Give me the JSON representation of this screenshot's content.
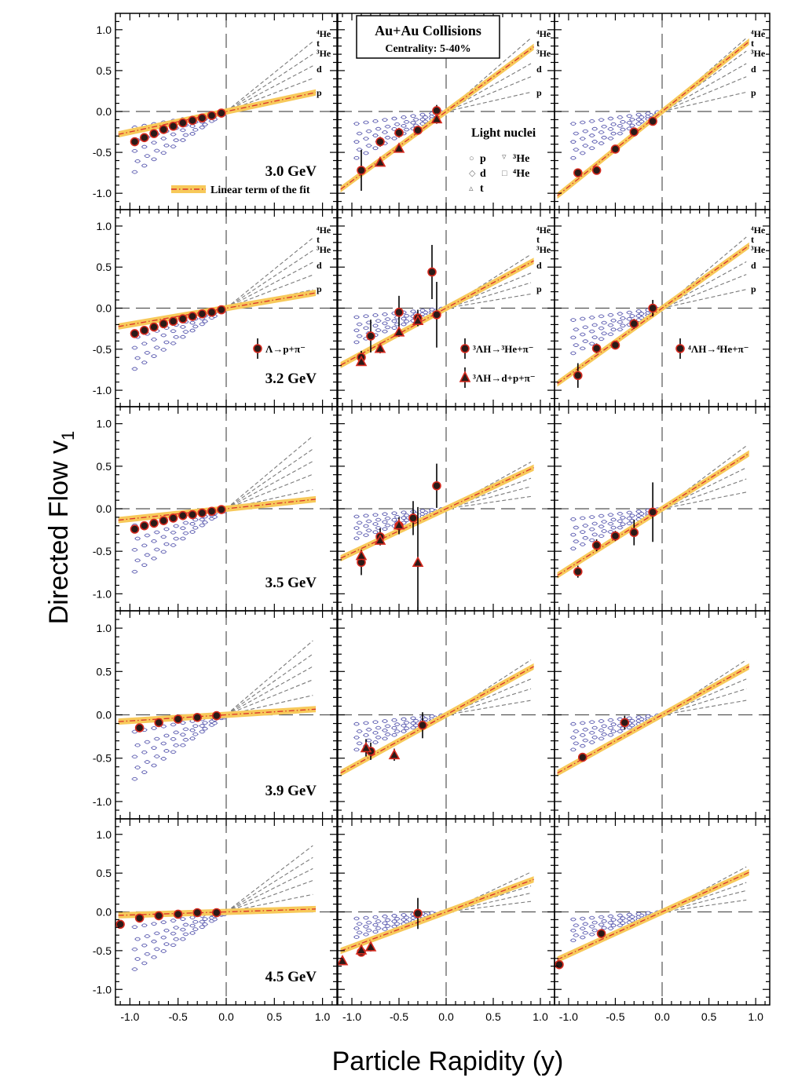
{
  "figure": {
    "title": "Au+Au Collisions",
    "subtitle": "Centrality: 5-40%",
    "xlabel": "Particle Rapidity (y)",
    "ylabel": "Directed Flow v",
    "ylabel_sub": "1",
    "fit_legend": "Linear term of the fit",
    "light_nuclei": {
      "title": "Light nuclei",
      "items": [
        {
          "symbol": "○",
          "label": "p"
        },
        {
          "symbol": "▿",
          "label": "³He"
        },
        {
          "symbol": "◇",
          "label": "d"
        },
        {
          "symbol": "□",
          "label": "⁴He"
        },
        {
          "symbol": "▵",
          "label": "t"
        }
      ]
    },
    "nuclei_labels": [
      "⁴He",
      "t",
      "³He",
      "d",
      "p"
    ],
    "decay_legends": [
      "Λ→p+π⁻",
      "³ΛH→³He+π⁻",
      "³ΛH→d+p+π⁻",
      "⁴ΛH→⁴He+π⁻"
    ],
    "colors": {
      "fit_band": "#f7c95a",
      "fit_line": "#d9312b",
      "marker_fill": "#2b1a17",
      "marker_edge": "#d62a1f",
      "nuclei_marker": "#5c5cb0",
      "guide": "#555555"
    }
  },
  "chart_data": {
    "type": "scatter",
    "xlim": [
      -1.15,
      1.15
    ],
    "ylim": [
      -1.2,
      1.2
    ],
    "x_ticks": [
      -1.0,
      -0.5,
      0.0,
      0.5,
      1.0
    ],
    "x_tick_labels": [
      "-1.0",
      "-0.5",
      "0.0",
      "0.5",
      "1.0"
    ],
    "y_ticks": [
      -1.0,
      -0.5,
      0.0,
      0.5,
      1.0
    ],
    "y_tick_labels": [
      "-1.0",
      "-0.5",
      "0.0",
      "0.5",
      "1.0"
    ],
    "light_nuclei_slopes": [
      0.95,
      0.78,
      0.62,
      0.45,
      0.25
    ],
    "rows": [
      {
        "energy": "3.0 GeV",
        "panels": [
          {
            "fit_slope": 0.25,
            "points": [
              {
                "x": -0.95,
                "y": -0.37
              },
              {
                "x": -0.85,
                "y": -0.32
              },
              {
                "x": -0.75,
                "y": -0.27
              },
              {
                "x": -0.65,
                "y": -0.22
              },
              {
                "x": -0.55,
                "y": -0.18
              },
              {
                "x": -0.45,
                "y": -0.14
              },
              {
                "x": -0.35,
                "y": -0.11
              },
              {
                "x": -0.25,
                "y": -0.08
              },
              {
                "x": -0.15,
                "y": -0.05
              },
              {
                "x": -0.05,
                "y": -0.02
              }
            ],
            "err": 0.02
          },
          {
            "fit_slope": 0.85,
            "points": [
              {
                "x": -0.9,
                "y": -0.72,
                "e": 0.25
              },
              {
                "x": -0.7,
                "y": -0.37,
                "e": 0.06
              },
              {
                "x": -0.5,
                "y": -0.26,
                "e": 0.06
              },
              {
                "x": -0.3,
                "y": -0.23,
                "e": 0.05
              },
              {
                "x": -0.1,
                "y": 0.01,
                "e": 0.07
              }
            ],
            "tri": [
              {
                "x": -0.7,
                "y": -0.62,
                "e": 0.04
              },
              {
                "x": -0.5,
                "y": -0.45,
                "e": 0.05
              },
              {
                "x": -0.1,
                "y": -0.09,
                "e": 0.06
              }
            ]
          },
          {
            "fit_slope": 0.92,
            "points": [
              {
                "x": -0.9,
                "y": -0.75,
                "e": 0.05
              },
              {
                "x": -0.7,
                "y": -0.72,
                "e": 0.04
              },
              {
                "x": -0.5,
                "y": -0.46,
                "e": 0.03
              },
              {
                "x": -0.3,
                "y": -0.25,
                "e": 0.03
              },
              {
                "x": -0.1,
                "y": -0.12,
                "e": 0.03
              }
            ]
          }
        ]
      },
      {
        "energy": "3.2 GeV",
        "panels": [
          {
            "fit_slope": 0.2,
            "points": [
              {
                "x": -0.95,
                "y": -0.31
              },
              {
                "x": -0.85,
                "y": -0.27
              },
              {
                "x": -0.75,
                "y": -0.23
              },
              {
                "x": -0.65,
                "y": -0.19
              },
              {
                "x": -0.55,
                "y": -0.16
              },
              {
                "x": -0.45,
                "y": -0.13
              },
              {
                "x": -0.35,
                "y": -0.1
              },
              {
                "x": -0.25,
                "y": -0.07
              },
              {
                "x": -0.15,
                "y": -0.05
              },
              {
                "x": -0.05,
                "y": -0.02
              }
            ],
            "err": 0.02
          },
          {
            "fit_slope": 0.62,
            "points": [
              {
                "x": -0.9,
                "y": -0.6,
                "e": 0.08
              },
              {
                "x": -0.8,
                "y": -0.34,
                "e": 0.2
              },
              {
                "x": -0.5,
                "y": -0.05,
                "e": 0.2
              },
              {
                "x": -0.3,
                "y": -0.12,
                "e": 0.1
              },
              {
                "x": -0.15,
                "y": 0.44,
                "e": 0.33
              },
              {
                "x": -0.1,
                "y": -0.08,
                "e": 0.4
              }
            ],
            "tri": [
              {
                "x": -0.9,
                "y": -0.65,
                "e": 0.05
              },
              {
                "x": -0.7,
                "y": -0.49,
                "e": 0.06
              },
              {
                "x": -0.5,
                "y": -0.29,
                "e": 0.06
              },
              {
                "x": -0.3,
                "y": -0.15,
                "e": 0.05
              }
            ]
          },
          {
            "fit_slope": 0.82,
            "points": [
              {
                "x": -0.9,
                "y": -0.82,
                "e": 0.15
              },
              {
                "x": -0.7,
                "y": -0.49,
                "e": 0.06
              },
              {
                "x": -0.5,
                "y": -0.45,
                "e": 0.05
              },
              {
                "x": -0.3,
                "y": -0.19,
                "e": 0.06
              },
              {
                "x": -0.1,
                "y": 0.0,
                "e": 0.1
              }
            ]
          }
        ]
      },
      {
        "energy": "3.5 GeV",
        "panels": [
          {
            "fit_slope": 0.12,
            "points": [
              {
                "x": -0.95,
                "y": -0.24
              },
              {
                "x": -0.85,
                "y": -0.2
              },
              {
                "x": -0.75,
                "y": -0.17
              },
              {
                "x": -0.65,
                "y": -0.14
              },
              {
                "x": -0.55,
                "y": -0.11
              },
              {
                "x": -0.45,
                "y": -0.08
              },
              {
                "x": -0.35,
                "y": -0.07
              },
              {
                "x": -0.25,
                "y": -0.05
              },
              {
                "x": -0.15,
                "y": -0.03
              },
              {
                "x": -0.05,
                "y": -0.01
              }
            ],
            "err": 0.02
          },
          {
            "fit_slope": 0.52,
            "points": [
              {
                "x": -0.9,
                "y": -0.63,
                "e": 0.15
              },
              {
                "x": -0.7,
                "y": -0.33,
                "e": 0.1
              },
              {
                "x": -0.5,
                "y": -0.2,
                "e": 0.1
              },
              {
                "x": -0.35,
                "y": -0.11,
                "e": 0.2
              },
              {
                "x": -0.1,
                "y": 0.27,
                "e": 0.26
              }
            ],
            "tri": [
              {
                "x": -0.9,
                "y": -0.55,
                "e": 0.06
              },
              {
                "x": -0.7,
                "y": -0.37,
                "e": 0.06
              },
              {
                "x": -0.5,
                "y": -0.19,
                "e": 0.06
              },
              {
                "x": -0.3,
                "y": -0.63,
                "e": 0.65
              }
            ]
          },
          {
            "fit_slope": 0.7,
            "points": [
              {
                "x": -0.9,
                "y": -0.74,
                "e": 0.07
              },
              {
                "x": -0.7,
                "y": -0.43,
                "e": 0.07
              },
              {
                "x": -0.5,
                "y": -0.32,
                "e": 0.06
              },
              {
                "x": -0.3,
                "y": -0.28,
                "e": 0.15
              },
              {
                "x": -0.1,
                "y": -0.04,
                "e": 0.35
              }
            ]
          }
        ]
      },
      {
        "energy": "3.9 GeV",
        "panels": [
          {
            "fit_slope": 0.07,
            "points": [
              {
                "x": -0.9,
                "y": -0.15
              },
              {
                "x": -0.7,
                "y": -0.09
              },
              {
                "x": -0.5,
                "y": -0.05
              },
              {
                "x": -0.3,
                "y": -0.03
              },
              {
                "x": -0.1,
                "y": -0.01
              }
            ],
            "err": 0.02
          },
          {
            "fit_slope": 0.6,
            "points": [
              {
                "x": -0.8,
                "y": -0.42,
                "e": 0.1
              },
              {
                "x": -0.25,
                "y": -0.12,
                "e": 0.15
              }
            ],
            "tri": [
              {
                "x": -0.85,
                "y": -0.38,
                "e": 0.1
              },
              {
                "x": -0.55,
                "y": -0.46,
                "e": 0.07
              }
            ]
          },
          {
            "fit_slope": 0.6,
            "points": [
              {
                "x": -0.85,
                "y": -0.49,
                "e": 0.05
              },
              {
                "x": -0.4,
                "y": -0.09,
                "e": 0.08
              }
            ]
          }
        ]
      },
      {
        "energy": "4.5 GeV",
        "panels": [
          {
            "fit_slope": 0.04,
            "points": [
              {
                "x": -1.1,
                "y": -0.16
              },
              {
                "x": -0.9,
                "y": -0.08
              },
              {
                "x": -0.7,
                "y": -0.05
              },
              {
                "x": -0.5,
                "y": -0.03
              },
              {
                "x": -0.3,
                "y": -0.01
              },
              {
                "x": -0.1,
                "y": -0.01
              }
            ],
            "err": 0.02
          },
          {
            "fit_slope": 0.45,
            "points": [
              {
                "x": -0.9,
                "y": -0.52,
                "e": 0.05
              },
              {
                "x": -0.3,
                "y": -0.02,
                "e": 0.2
              }
            ],
            "tri": [
              {
                "x": -1.1,
                "y": -0.63,
                "e": 0.05
              },
              {
                "x": -0.9,
                "y": -0.49,
                "e": 0.06
              },
              {
                "x": -0.8,
                "y": -0.45,
                "e": 0.06
              }
            ]
          },
          {
            "fit_slope": 0.55,
            "points": [
              {
                "x": -1.1,
                "y": -0.68,
                "e": 0.04
              },
              {
                "x": -0.65,
                "y": -0.28,
                "e": 0.06
              }
            ]
          }
        ]
      }
    ]
  }
}
